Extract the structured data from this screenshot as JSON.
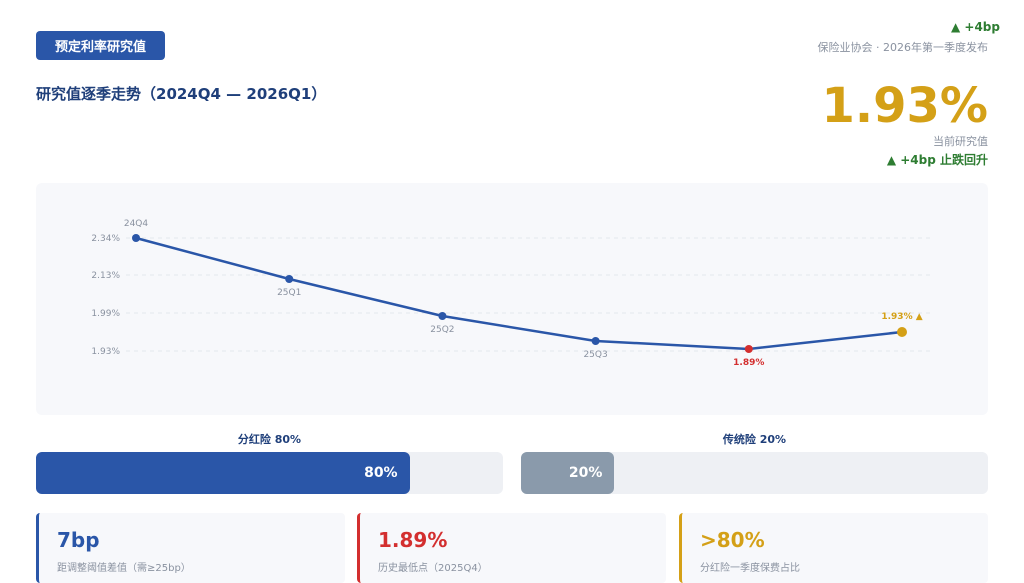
{
  "header": {
    "tag": "预定利率研究值",
    "source": "保险业协会 · 2026年第一季度发布",
    "top_delta": "▲ +4bp"
  },
  "title": "研究值逐季走势（2024Q4 — 2026Q1）",
  "current": {
    "value": "1.93%",
    "label": "当前研究值",
    "change": "▲ +4bp 止跌回升"
  },
  "chart_data": {
    "type": "line",
    "x": [
      "24Q4",
      "25Q1",
      "25Q2",
      "25Q3",
      "",
      ""
    ],
    "values": [
      2.34,
      2.13,
      1.99,
      1.9,
      1.89,
      1.93
    ],
    "yticks": [
      "2.34%",
      "2.13%",
      "1.99%",
      "1.93%"
    ],
    "point_labels": [
      "24Q4",
      "25Q1",
      "25Q2",
      "25Q3",
      "1.89%",
      "1.93% ▲"
    ],
    "colors": {
      "line": "#2a56a8",
      "low": "#d32f2f",
      "latest": "#d4a017"
    }
  },
  "split": {
    "dividend": {
      "label": "分红险 80%",
      "value": 80,
      "text": "80%",
      "color": "#2a56a8"
    },
    "traditional": {
      "label": "传统险 20%",
      "value": 20,
      "text": "20%",
      "color": "#8a9aab"
    }
  },
  "cards": [
    {
      "value": "7bp",
      "desc": "距调整阈值差值（需≥25bp）",
      "color": "#2a56a8"
    },
    {
      "value": "1.89%",
      "desc": "历史最低点（2025Q4）",
      "color": "#d32f2f"
    },
    {
      "value": ">80%",
      "desc": "分红险一季度保费占比",
      "color": "#d4a017"
    }
  ]
}
